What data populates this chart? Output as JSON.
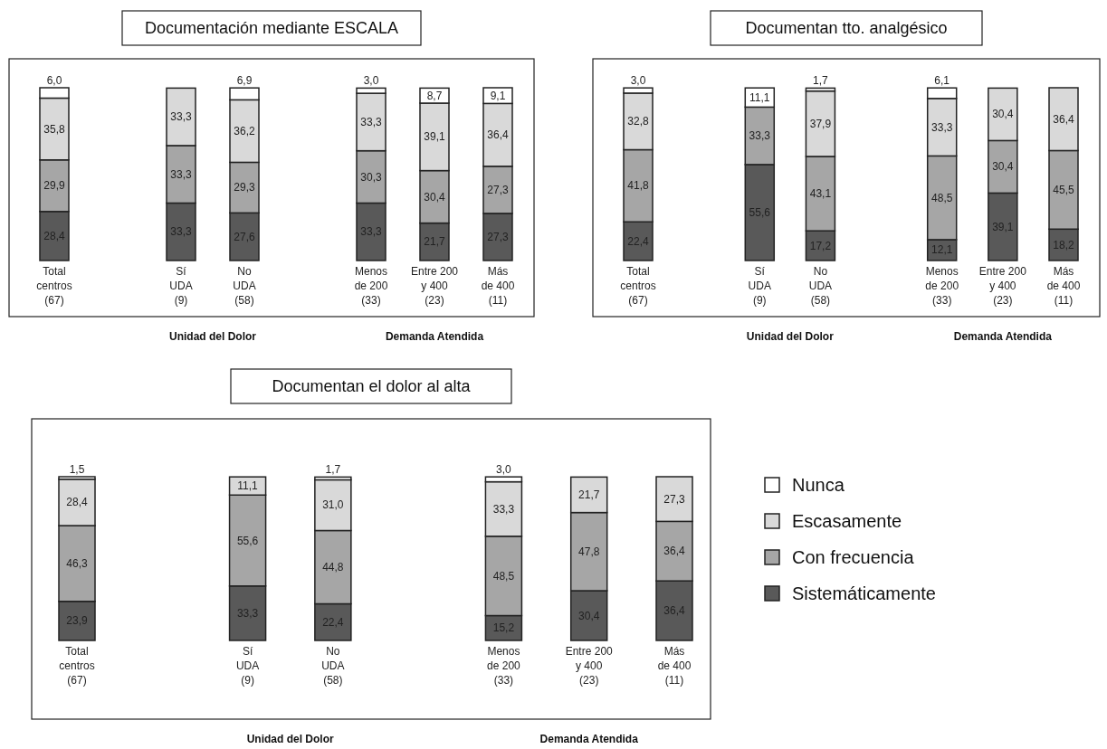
{
  "chart_data": [
    {
      "type": "bar",
      "stacked": true,
      "title": "Documentación mediante ESCALA",
      "legend": false,
      "categories": [
        "Total\ncentros\n(67)",
        null,
        "Sí\nUDA\n(9)",
        "No\nUDA\n(58)",
        null,
        "Menos\nde 200\n(33)",
        "Entre 200\ny 400\n(23)",
        "Más\nde 400\n(11)"
      ],
      "annotations": [
        "Unidad del Dolor",
        "Demanda Atendida"
      ],
      "series": [
        {
          "color": "#595959",
          "values": [
            28.4,
            null,
            33.3,
            27.6,
            null,
            33.3,
            21.7,
            27.3
          ],
          "value_labels": [
            "28,4",
            null,
            "33,3",
            "27,6",
            null,
            "33,3",
            "21,7",
            "27,3"
          ]
        },
        {
          "color": "#a6a6a6",
          "values": [
            29.9,
            null,
            33.3,
            29.3,
            null,
            30.3,
            30.4,
            27.3
          ],
          "value_labels": [
            "29,9",
            null,
            "33,3",
            "29,3",
            null,
            "30,3",
            "30,4",
            "27,3"
          ]
        },
        {
          "color": "#d9d9d9",
          "values": [
            35.8,
            null,
            33.3,
            36.2,
            null,
            33.3,
            39.1,
            36.4
          ],
          "value_labels": [
            "35,8",
            null,
            "33,3",
            "36,2",
            null,
            "33,3",
            "39,1",
            "36,4"
          ]
        },
        {
          "color": "#ffffff",
          "values": [
            6.0,
            null,
            null,
            6.9,
            null,
            3.0,
            8.7,
            9.1
          ],
          "value_labels": [
            "6,0",
            null,
            null,
            "6,9",
            null,
            "3,0",
            "8,7",
            "9,1"
          ]
        }
      ]
    },
    {
      "type": "bar",
      "stacked": true,
      "title": "Documentan tto. analgésico",
      "legend": false,
      "categories": [
        "Total\ncentros\n(67)",
        null,
        "Sí\nUDA\n(9)",
        "No\nUDA\n(58)",
        null,
        "Menos\nde 200\n(33)",
        "Entre 200\ny 400\n(23)",
        "Más\nde 400\n(11)"
      ],
      "annotations": [
        "Unidad del Dolor",
        "Demanda Atendida"
      ],
      "series": [
        {
          "color": "#595959",
          "values": [
            22.4,
            null,
            55.6,
            17.2,
            null,
            12.1,
            39.1,
            18.2
          ],
          "value_labels": [
            "22,4",
            null,
            "55,6",
            "17,2",
            null,
            "12,1",
            "39,1",
            "18,2"
          ]
        },
        {
          "color": "#a6a6a6",
          "values": [
            41.8,
            null,
            33.3,
            43.1,
            null,
            48.5,
            30.4,
            45.5
          ],
          "value_labels": [
            "41,8",
            null,
            "33,3",
            "43,1",
            null,
            "48,5",
            "30,4",
            "45,5"
          ]
        },
        {
          "color": "#d9d9d9",
          "values": [
            32.8,
            null,
            null,
            37.9,
            null,
            33.3,
            30.4,
            36.4
          ],
          "value_labels": [
            "32,8",
            null,
            null,
            "37,9",
            null,
            "33,3",
            "30,4",
            "36,4"
          ]
        },
        {
          "color": "#ffffff",
          "values": [
            3.0,
            null,
            11.1,
            1.7,
            null,
            6.1,
            null,
            null
          ],
          "value_labels": [
            "3,0",
            null,
            "11,1",
            "1,7",
            null,
            "6,1",
            null,
            null
          ]
        }
      ]
    },
    {
      "type": "bar",
      "stacked": true,
      "title": "Documentan el dolor al alta",
      "legend": "right",
      "categories": [
        "Total\ncentros\n(67)",
        null,
        "Sí\nUDA\n(9)",
        "No\nUDA\n(58)",
        null,
        "Menos\nde 200\n(33)",
        "Entre 200\ny 400\n(23)",
        "Más\nde 400\n(11)"
      ],
      "annotations": [
        "Unidad del Dolor",
        "Demanda Atendida"
      ],
      "series": [
        {
          "name": "Sistemáticamente",
          "color": "#595959",
          "values": [
            23.9,
            null,
            33.3,
            22.4,
            null,
            15.2,
            30.4,
            36.4
          ],
          "value_labels": [
            "23,9",
            null,
            "33,3",
            "22,4",
            null,
            "15,2",
            "30,4",
            "36,4"
          ]
        },
        {
          "name": "Con frecuencia",
          "color": "#a6a6a6",
          "values": [
            46.3,
            null,
            55.6,
            44.8,
            null,
            48.5,
            47.8,
            36.4
          ],
          "value_labels": [
            "46,3",
            null,
            "55,6",
            "44,8",
            null,
            "48,5",
            "47,8",
            "36,4"
          ]
        },
        {
          "name": "Escasamente",
          "color": "#d9d9d9",
          "values": [
            28.4,
            null,
            11.1,
            31.0,
            null,
            33.3,
            21.7,
            27.3
          ],
          "value_labels": [
            "28,4",
            null,
            "11,1",
            "31,0",
            null,
            "33,3",
            "21,7",
            "27,3"
          ]
        },
        {
          "name": "Nunca",
          "color": "#ffffff",
          "values": [
            1.5,
            null,
            null,
            1.7,
            null,
            3.0,
            null,
            null
          ],
          "value_labels": [
            "1,5",
            null,
            null,
            "1,7",
            null,
            "3,0",
            null,
            null
          ]
        }
      ]
    }
  ]
}
